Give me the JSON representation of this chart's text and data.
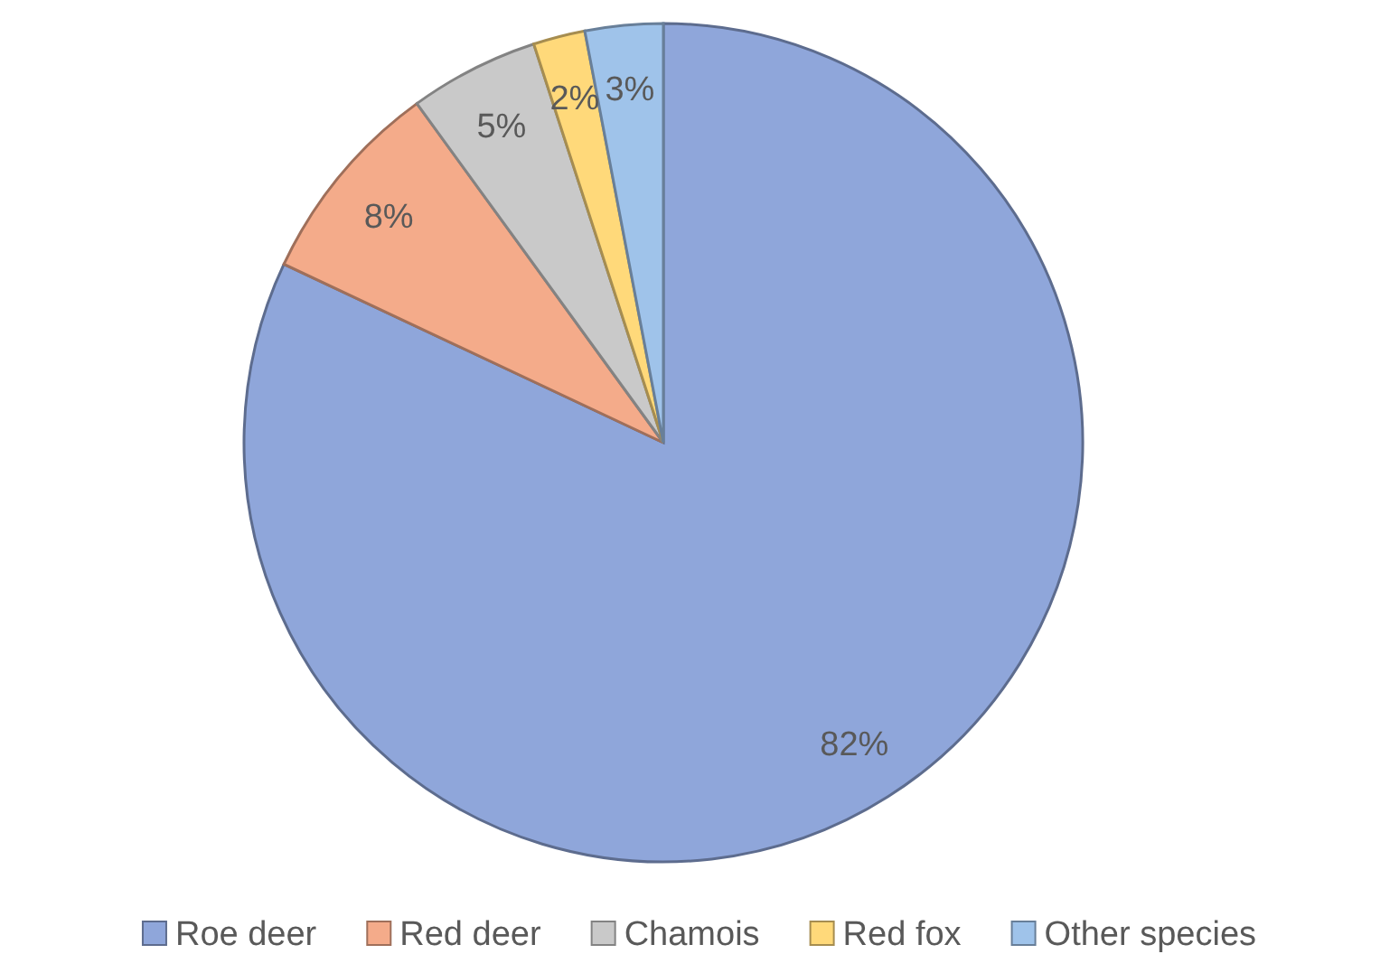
{
  "chart_data": {
    "type": "pie",
    "categories": [
      "Roe deer",
      "Red deer",
      "Chamois",
      "Red fox",
      "Other species"
    ],
    "values": [
      82,
      8,
      5,
      2,
      3
    ],
    "colors": [
      "#8fa6da",
      "#f4ab8a",
      "#c9c9c9",
      "#ffd97a",
      "#9fc3ea"
    ],
    "value_labels": [
      "82%",
      "8%",
      "5%",
      "2%",
      "3%"
    ],
    "legend": "bottom"
  }
}
